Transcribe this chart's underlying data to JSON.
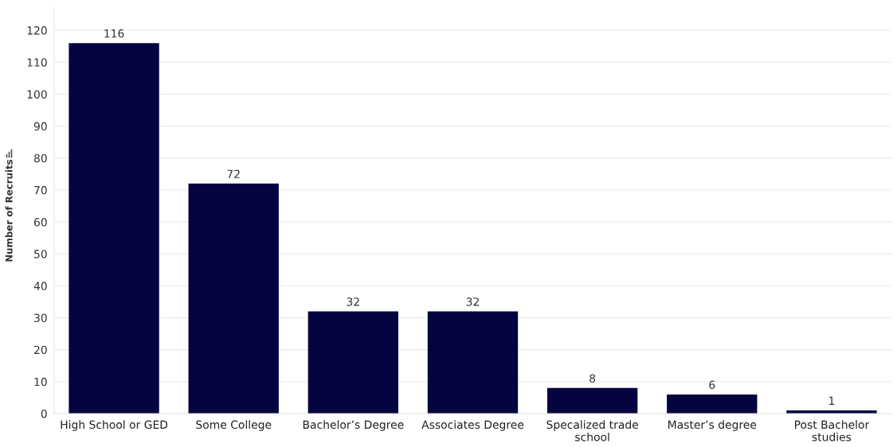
{
  "chart_data": {
    "type": "bar",
    "ylabel": "Number of Recruits",
    "categories": [
      "High School or GED",
      "Some College",
      "Bachelor’s Degree",
      "Associates Degree",
      "Specalized trade school",
      "Master’s degree",
      "Post Bachelor studies"
    ],
    "values": [
      116,
      72,
      32,
      32,
      8,
      6,
      1
    ],
    "color": "#050440",
    "ylim": [
      0,
      127
    ],
    "yticks": [
      0,
      10,
      20,
      30,
      40,
      50,
      60,
      70,
      80,
      90,
      100,
      110,
      120
    ],
    "grid": "y",
    "data_labels": true
  }
}
